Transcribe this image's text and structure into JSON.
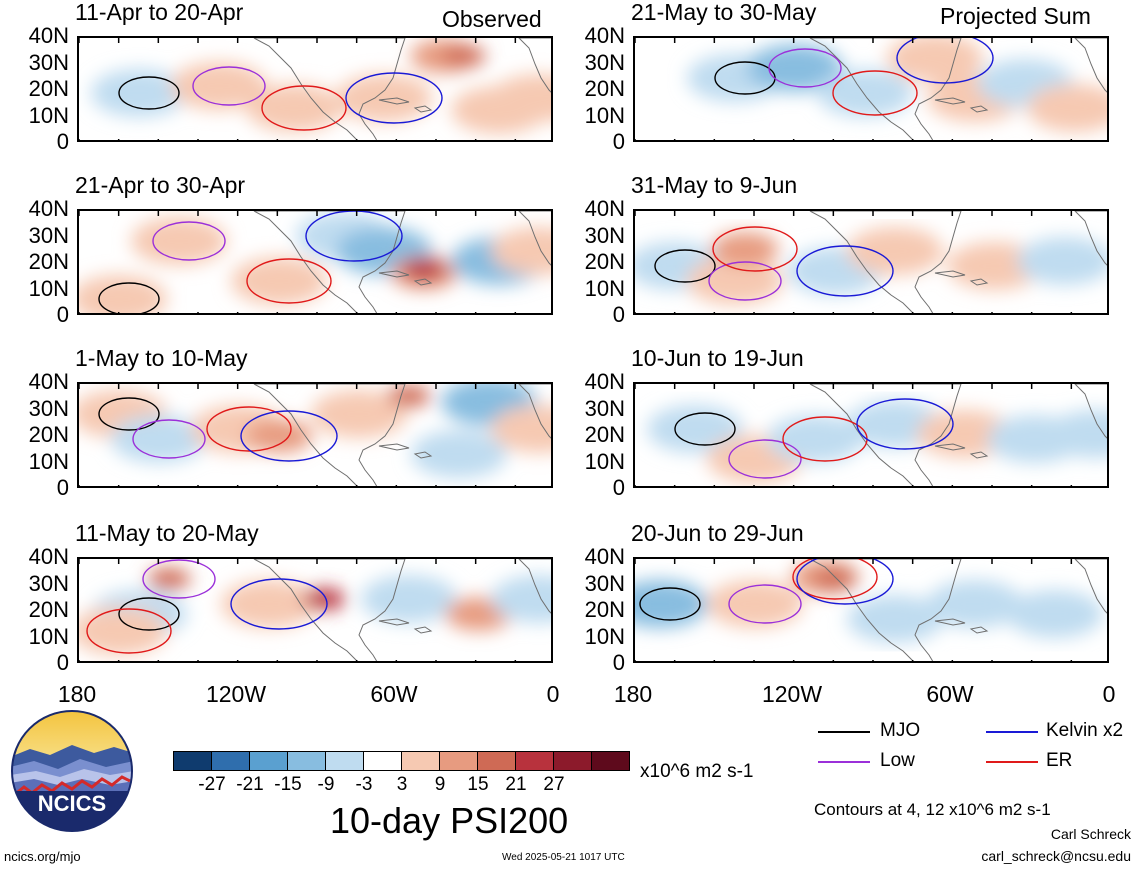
{
  "header": {
    "left_tag": "Observed",
    "right_tag": "Projected Sum"
  },
  "panels": [
    {
      "title": "11-Apr to 20-Apr",
      "col": 0,
      "row": 0,
      "blobs": [
        [
          60,
          55,
          "#bfdcf0"
        ],
        [
          140,
          48,
          "#f6c9b2"
        ],
        [
          215,
          70,
          "#f6c9b2"
        ],
        [
          305,
          60,
          "#f6c9b2"
        ],
        [
          365,
          18,
          "#e79b80"
        ],
        [
          385,
          18,
          "#cf6a55"
        ],
        [
          420,
          72,
          "#f6c9b2"
        ],
        [
          460,
          60,
          "#f6c9b2"
        ]
      ]
    },
    {
      "title": "21-Apr to 30-Apr",
      "col": 0,
      "row": 1,
      "blobs": [
        [
          40,
          88,
          "#f6c9b2"
        ],
        [
          100,
          30,
          "#f6c9b2"
        ],
        [
          200,
          70,
          "#f6c9b2"
        ],
        [
          265,
          25,
          "#bfdcf0"
        ],
        [
          305,
          40,
          "#88bde0"
        ],
        [
          345,
          62,
          "#e79b80"
        ],
        [
          345,
          58,
          "#b8323d"
        ],
        [
          420,
          50,
          "#88bde0"
        ],
        [
          460,
          40,
          "#f6c9b2"
        ]
      ]
    },
    {
      "title": "1-May to 10-May",
      "col": 0,
      "row": 2,
      "blobs": [
        [
          40,
          30,
          "#f6c9b2"
        ],
        [
          80,
          55,
          "#bfdcf0"
        ],
        [
          160,
          45,
          "#f6c9b2"
        ],
        [
          200,
          52,
          "#e79b80"
        ],
        [
          280,
          30,
          "#f6c9b2"
        ],
        [
          330,
          12,
          "#cf6a55"
        ],
        [
          380,
          70,
          "#bfdcf0"
        ],
        [
          410,
          18,
          "#88bde0"
        ],
        [
          460,
          45,
          "#f6c9b2"
        ]
      ]
    },
    {
      "title": "11-May to 20-May",
      "col": 0,
      "row": 3,
      "blobs": [
        [
          60,
          55,
          "#bfdcf0"
        ],
        [
          90,
          20,
          "#cf6a55"
        ],
        [
          40,
          72,
          "#f6c9b2"
        ],
        [
          190,
          45,
          "#f6c9b2"
        ],
        [
          245,
          40,
          "#cf6a55"
        ],
        [
          245,
          40,
          "#b8323d"
        ],
        [
          330,
          40,
          "#bfdcf0"
        ],
        [
          400,
          55,
          "#e79b80"
        ],
        [
          460,
          40,
          "#bfdcf0"
        ]
      ]
    },
    {
      "title": "21-May to 30-May",
      "col": 1,
      "row": 0,
      "blobs": [
        [
          100,
          40,
          "#bfdcf0"
        ],
        [
          160,
          30,
          "#88bde0"
        ],
        [
          230,
          55,
          "#bfdcf0"
        ],
        [
          300,
          20,
          "#f6c9b2"
        ],
        [
          340,
          60,
          "#f6c9b2"
        ],
        [
          390,
          45,
          "#bfdcf0"
        ],
        [
          440,
          70,
          "#f6c9b2"
        ]
      ]
    },
    {
      "title": "31-May to 9-Jun",
      "col": 1,
      "row": 1,
      "blobs": [
        [
          40,
          55,
          "#bfdcf0"
        ],
        [
          100,
          70,
          "#f6c9b2"
        ],
        [
          110,
          38,
          "#e79b80"
        ],
        [
          200,
          60,
          "#bfdcf0"
        ],
        [
          260,
          40,
          "#f6c9b2"
        ],
        [
          360,
          55,
          "#f6c9b2"
        ],
        [
          430,
          50,
          "#bfdcf0"
        ]
      ]
    },
    {
      "title": "10-Jun to 19-Jun",
      "col": 1,
      "row": 2,
      "blobs": [
        [
          60,
          45,
          "#bfdcf0"
        ],
        [
          120,
          75,
          "#f6c9b2"
        ],
        [
          180,
          55,
          "#bfdcf0"
        ],
        [
          260,
          40,
          "#bfdcf0"
        ],
        [
          330,
          50,
          "#f6c9b2"
        ],
        [
          400,
          55,
          "#bfdcf0"
        ],
        [
          460,
          50,
          "#bfdcf0"
        ]
      ]
    },
    {
      "title": "20-Jun to 29-Jun",
      "col": 1,
      "row": 3,
      "blobs": [
        [
          25,
          45,
          "#88bde0"
        ],
        [
          120,
          45,
          "#f6c9b2"
        ],
        [
          190,
          18,
          "#e79b80"
        ],
        [
          200,
          20,
          "#cf6a55"
        ],
        [
          260,
          60,
          "#bfdcf0"
        ],
        [
          340,
          45,
          "#bfdcf0"
        ],
        [
          420,
          55,
          "#bfdcf0"
        ]
      ]
    }
  ],
  "y_axis_labels": [
    "40N",
    "30N",
    "20N",
    "10N",
    "0"
  ],
  "x_axis_labels": [
    "180",
    "120W",
    "60W",
    "0"
  ],
  "colorbar": {
    "colors": [
      "#0f3b6e",
      "#2f6ead",
      "#5aa0d0",
      "#88bde0",
      "#bfdcf0",
      "#ffffff",
      "#f6c9b2",
      "#e79b80",
      "#cf6a55",
      "#b8323d",
      "#8c1a2b",
      "#5e0a1c"
    ],
    "labels": [
      "-27",
      "-21",
      "-15",
      "-9",
      "-3",
      "3",
      "9",
      "15",
      "21",
      "27"
    ],
    "units": "x10^6 m2 s-1"
  },
  "title": "10-day PSI200",
  "legend": [
    {
      "label": "MJO",
      "color": "#000000"
    },
    {
      "label": "Kelvin x2",
      "color": "#1a1ad6"
    },
    {
      "label": "Low",
      "color": "#9b30d9"
    },
    {
      "label": "ER",
      "color": "#e01a1a"
    }
  ],
  "contours_note": "Contours at 4, 12 x10^6 m2 s-1",
  "author": "Carl Schreck",
  "email": "carl_schreck@ncsu.edu",
  "site": "ncics.org/mjo",
  "timestamp": "Wed 2025-05-21 1017 UTC",
  "logo_text": "NCICS"
}
